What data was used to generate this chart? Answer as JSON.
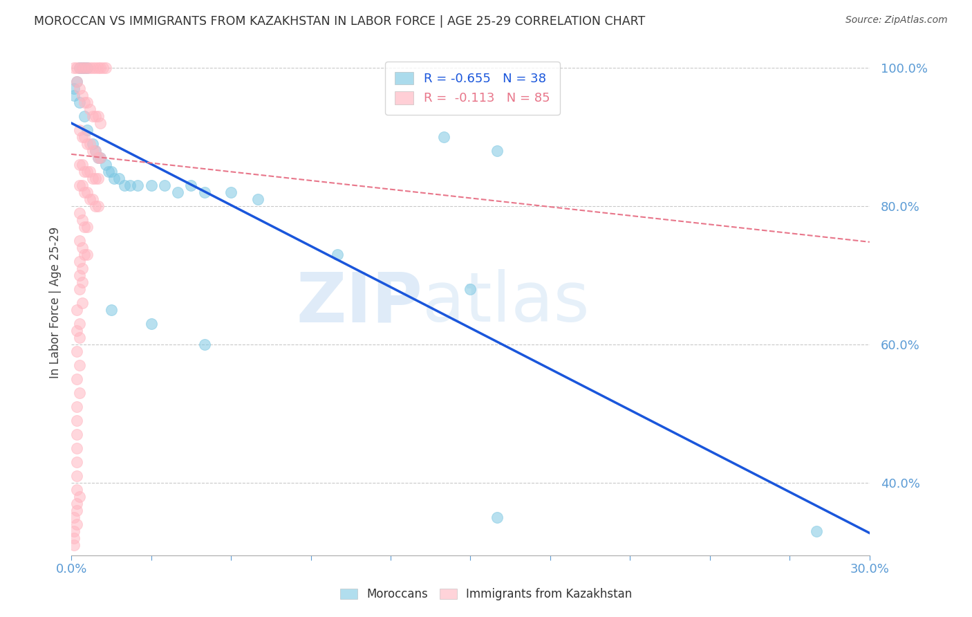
{
  "title": "MOROCCAN VS IMMIGRANTS FROM KAZAKHSTAN IN LABOR FORCE | AGE 25-29 CORRELATION CHART",
  "source": "Source: ZipAtlas.com",
  "ylabel": "In Labor Force | Age 25-29",
  "R_blue": -0.655,
  "N_blue": 38,
  "R_pink": -0.113,
  "N_pink": 85,
  "xlim": [
    0.0,
    0.3
  ],
  "ylim": [
    0.295,
    1.025
  ],
  "blue_scatter": [
    [
      0.001,
      0.97
    ],
    [
      0.001,
      0.96
    ],
    [
      0.003,
      1.0
    ],
    [
      0.004,
      1.0
    ],
    [
      0.005,
      1.0
    ],
    [
      0.006,
      1.0
    ],
    [
      0.002,
      0.98
    ],
    [
      0.003,
      0.95
    ],
    [
      0.005,
      0.93
    ],
    [
      0.006,
      0.91
    ],
    [
      0.008,
      0.89
    ],
    [
      0.009,
      0.88
    ],
    [
      0.01,
      0.87
    ],
    [
      0.011,
      0.87
    ],
    [
      0.013,
      0.86
    ],
    [
      0.014,
      0.85
    ],
    [
      0.015,
      0.85
    ],
    [
      0.016,
      0.84
    ],
    [
      0.018,
      0.84
    ],
    [
      0.02,
      0.83
    ],
    [
      0.022,
      0.83
    ],
    [
      0.025,
      0.83
    ],
    [
      0.03,
      0.83
    ],
    [
      0.035,
      0.83
    ],
    [
      0.04,
      0.82
    ],
    [
      0.045,
      0.83
    ],
    [
      0.05,
      0.82
    ],
    [
      0.06,
      0.82
    ],
    [
      0.07,
      0.81
    ],
    [
      0.015,
      0.65
    ],
    [
      0.03,
      0.63
    ],
    [
      0.05,
      0.6
    ],
    [
      0.1,
      0.73
    ],
    [
      0.15,
      0.68
    ],
    [
      0.16,
      0.35
    ],
    [
      0.28,
      0.33
    ],
    [
      0.14,
      0.9
    ],
    [
      0.16,
      0.88
    ]
  ],
  "pink_scatter": [
    [
      0.001,
      1.0
    ],
    [
      0.002,
      1.0
    ],
    [
      0.003,
      1.0
    ],
    [
      0.004,
      1.0
    ],
    [
      0.005,
      1.0
    ],
    [
      0.006,
      1.0
    ],
    [
      0.007,
      1.0
    ],
    [
      0.008,
      1.0
    ],
    [
      0.009,
      1.0
    ],
    [
      0.01,
      1.0
    ],
    [
      0.011,
      1.0
    ],
    [
      0.012,
      1.0
    ],
    [
      0.013,
      1.0
    ],
    [
      0.002,
      0.98
    ],
    [
      0.003,
      0.97
    ],
    [
      0.004,
      0.96
    ],
    [
      0.005,
      0.95
    ],
    [
      0.006,
      0.95
    ],
    [
      0.007,
      0.94
    ],
    [
      0.008,
      0.93
    ],
    [
      0.009,
      0.93
    ],
    [
      0.01,
      0.93
    ],
    [
      0.011,
      0.92
    ],
    [
      0.003,
      0.91
    ],
    [
      0.004,
      0.9
    ],
    [
      0.005,
      0.9
    ],
    [
      0.006,
      0.89
    ],
    [
      0.007,
      0.89
    ],
    [
      0.008,
      0.88
    ],
    [
      0.009,
      0.88
    ],
    [
      0.01,
      0.87
    ],
    [
      0.011,
      0.87
    ],
    [
      0.003,
      0.86
    ],
    [
      0.004,
      0.86
    ],
    [
      0.005,
      0.85
    ],
    [
      0.006,
      0.85
    ],
    [
      0.007,
      0.85
    ],
    [
      0.008,
      0.84
    ],
    [
      0.009,
      0.84
    ],
    [
      0.01,
      0.84
    ],
    [
      0.003,
      0.83
    ],
    [
      0.004,
      0.83
    ],
    [
      0.005,
      0.82
    ],
    [
      0.006,
      0.82
    ],
    [
      0.007,
      0.81
    ],
    [
      0.008,
      0.81
    ],
    [
      0.009,
      0.8
    ],
    [
      0.01,
      0.8
    ],
    [
      0.003,
      0.79
    ],
    [
      0.004,
      0.78
    ],
    [
      0.005,
      0.77
    ],
    [
      0.006,
      0.77
    ],
    [
      0.003,
      0.75
    ],
    [
      0.004,
      0.74
    ],
    [
      0.005,
      0.73
    ],
    [
      0.006,
      0.73
    ],
    [
      0.003,
      0.72
    ],
    [
      0.004,
      0.71
    ],
    [
      0.003,
      0.7
    ],
    [
      0.004,
      0.69
    ],
    [
      0.003,
      0.68
    ],
    [
      0.004,
      0.66
    ],
    [
      0.002,
      0.65
    ],
    [
      0.003,
      0.63
    ],
    [
      0.002,
      0.62
    ],
    [
      0.003,
      0.61
    ],
    [
      0.002,
      0.59
    ],
    [
      0.003,
      0.57
    ],
    [
      0.002,
      0.55
    ],
    [
      0.003,
      0.53
    ],
    [
      0.002,
      0.51
    ],
    [
      0.002,
      0.49
    ],
    [
      0.002,
      0.47
    ],
    [
      0.002,
      0.45
    ],
    [
      0.002,
      0.43
    ],
    [
      0.002,
      0.41
    ],
    [
      0.002,
      0.39
    ],
    [
      0.002,
      0.37
    ],
    [
      0.001,
      0.35
    ],
    [
      0.001,
      0.33
    ],
    [
      0.001,
      0.31
    ],
    [
      0.003,
      0.38
    ],
    [
      0.002,
      0.36
    ],
    [
      0.002,
      0.34
    ],
    [
      0.001,
      0.32
    ]
  ],
  "blue_line_x": [
    0.0,
    0.3
  ],
  "blue_line_y": [
    0.92,
    0.327
  ],
  "pink_line_x": [
    0.0,
    0.3
  ],
  "pink_line_y": [
    0.875,
    0.748
  ],
  "blue_color": "#7EC8E3",
  "pink_color": "#FFB6C1",
  "blue_line_color": "#1A56DB",
  "pink_line_color": "#E8768A",
  "background_color": "#FFFFFF",
  "grid_color": "#BBBBBB",
  "title_color": "#333333",
  "axis_color": "#5B9BD5",
  "watermark_zip": "ZIP",
  "watermark_atlas": "atlas",
  "legend_label_blue": "Moroccans",
  "legend_label_pink": "Immigrants from Kazakhstan"
}
